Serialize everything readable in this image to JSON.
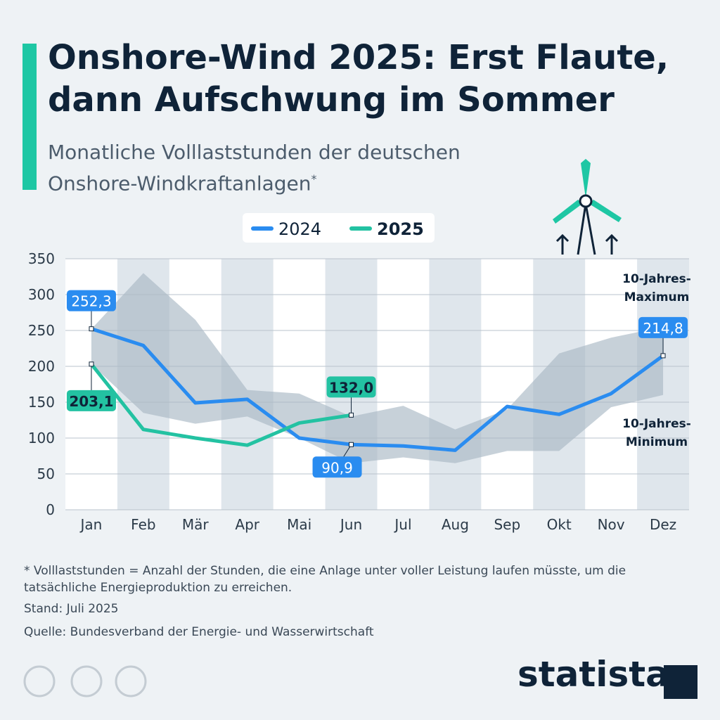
{
  "chart_data": {
    "type": "line",
    "title": "Onshore-Wind 2025: Erst Flaute, dann Aufschwung im Sommer",
    "subtitle": "Monatliche Volllaststunden der deutschen Onshore-Windkraftanlagen",
    "subtitle_marker": "*",
    "categories": [
      "Jan",
      "Feb",
      "Mär",
      "Apr",
      "Mai",
      "Jun",
      "Jul",
      "Aug",
      "Sep",
      "Okt",
      "Nov",
      "Dez"
    ],
    "series": [
      {
        "name": "2024",
        "color": "#2a8cf0",
        "values": [
          252.3,
          229,
          149,
          154,
          100,
          90.9,
          89,
          83,
          144,
          133,
          162,
          214.8
        ],
        "value_labels": [
          "252,3",
          null,
          null,
          null,
          null,
          "90,9",
          null,
          null,
          null,
          null,
          null,
          "214,8"
        ]
      },
      {
        "name": "2025",
        "color": "#23c2a2",
        "values": [
          203.1,
          112,
          100,
          90,
          121,
          132.0,
          null,
          null,
          null,
          null,
          null,
          null
        ],
        "value_labels": [
          "203,1",
          null,
          null,
          null,
          null,
          "132,0",
          null,
          null,
          null,
          null,
          null,
          null
        ]
      }
    ],
    "range": {
      "color": "#a9b8c5",
      "max_label": [
        "10-Jahres-",
        "Maximum"
      ],
      "min_label": [
        "10-Jahres-",
        "Minimum"
      ],
      "max": [
        252,
        330,
        265,
        167,
        162,
        130,
        145,
        112,
        140,
        218,
        240,
        255
      ],
      "min": [
        203,
        135,
        120,
        130,
        100,
        65,
        73,
        65,
        82,
        82,
        143,
        160
      ]
    },
    "ylim": [
      0,
      350
    ],
    "yticks": [
      0,
      50,
      100,
      150,
      200,
      250,
      300,
      350
    ],
    "grid": true,
    "footnote": "* Volllaststunden = Anzahl der Stunden, die eine Anlage unter voller Leistung laufen müsste, um die tatsächliche Energieproduktion zu erreichen.",
    "date": "Stand: Juli 2025",
    "source": "Quelle: Bundesverband der Energie- und Wasserwirtschaft",
    "brand": "statista"
  }
}
